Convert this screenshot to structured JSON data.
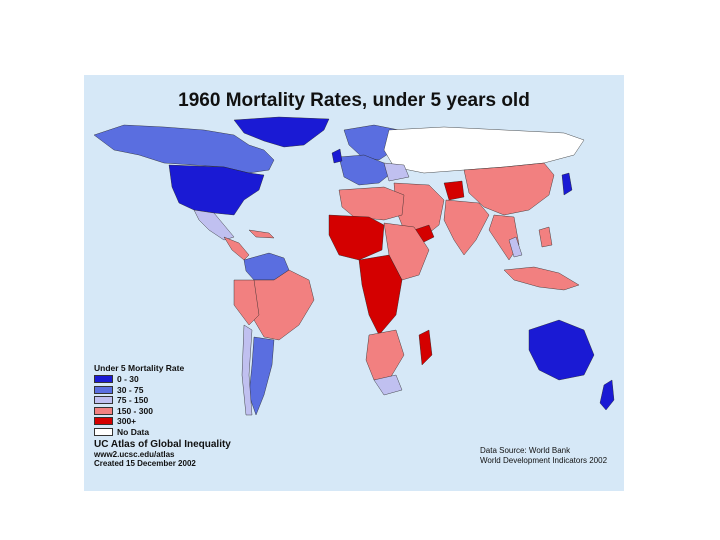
{
  "map": {
    "title": "1960 Mortality Rates, under 5 years old"
  },
  "colors": {
    "ocean": "#d6e8f7",
    "0-30": "#1a1ad4",
    "30-75": "#5a6ee0",
    "75-150": "#c0c0f0",
    "150-300": "#f28080",
    "300+": "#d40000",
    "no-data": "#ffffff"
  },
  "legend": {
    "title": "Under 5 Mortality Rate",
    "items": [
      {
        "label": "0 - 30",
        "color": "#1a1ad4"
      },
      {
        "label": "30 - 75",
        "color": "#5a6ee0"
      },
      {
        "label": "75 - 150",
        "color": "#c0c0f0"
      },
      {
        "label": "150 - 300",
        "color": "#f28080"
      },
      {
        "label": "300+",
        "color": "#d40000"
      },
      {
        "label": "No Data",
        "color": "#ffffff"
      }
    ]
  },
  "credit": {
    "atlas": "UC Atlas of Global Inequality",
    "url": "www2.ucsc.edu/atlas",
    "created": "Created 15 December 2002"
  },
  "source": {
    "line1": "Data Source: World Bank",
    "line2": "World Development Indicators 2002"
  }
}
